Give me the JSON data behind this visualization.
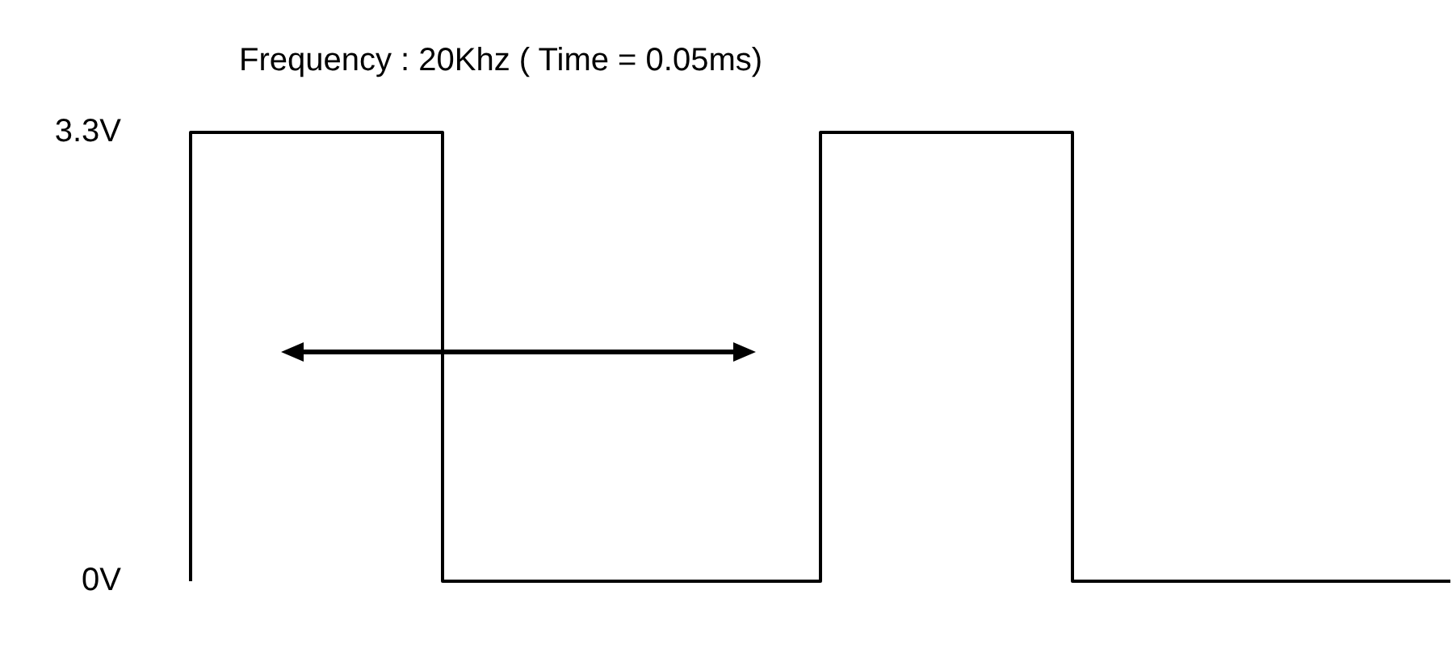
{
  "chart_data": {
    "type": "step",
    "title": "Frequency : 20Khz ( Time = 0.05ms)",
    "categories": [
      null,
      null,
      null,
      null,
      null,
      null,
      null,
      null,
      null,
      null,
      null,
      null,
      null,
      null,
      null,
      null,
      null,
      null,
      null,
      null,
      null
    ],
    "series": [
      {
        "color": "#000000",
        "values": [
          0,
          3.3,
          3.3,
          3.3,
          3.3,
          0,
          0,
          0,
          0,
          0,
          0,
          3.3,
          3.3,
          3.3,
          3.3,
          0,
          0,
          0,
          0,
          0,
          0
        ]
      }
    ],
    "ylim": [
      0,
      3.3
    ],
    "yticks": [
      {
        "value": 3.3,
        "label": "3.3V"
      },
      {
        "value": 0,
        "label": "0V"
      }
    ],
    "tick_labels": "y",
    "grid": false,
    "legend": false,
    "marker": "none"
  }
}
